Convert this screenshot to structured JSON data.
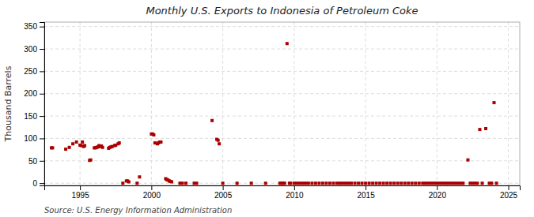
{
  "chart_data": {
    "type": "scatter",
    "title": "Monthly U.S. Exports to Indonesia of Petroleum Coke",
    "ylabel": "Thousand Barrels",
    "annotation": "Source: U.S. Energy Information Administration",
    "color": "#aa0000",
    "marker": "square",
    "grid": true,
    "xlim": [
      1992.5,
      2025.8
    ],
    "xticks": [
      1995,
      2000,
      2005,
      2010,
      2015,
      2020,
      2025
    ],
    "ylim": [
      -5,
      360
    ],
    "yticks": [
      0,
      50,
      100,
      150,
      200,
      250,
      300,
      350
    ],
    "x": [
      1993.0,
      1993.08,
      1994.0,
      1994.25,
      1994.5,
      1994.75,
      1995.0,
      1995.08,
      1995.17,
      1995.25,
      1995.33,
      1995.67,
      1995.75,
      1996.0,
      1996.08,
      1996.17,
      1996.25,
      1996.33,
      1996.42,
      1996.5,
      1996.58,
      1997.0,
      1997.08,
      1997.17,
      1997.25,
      1997.42,
      1997.5,
      1997.67,
      1997.75,
      1998.0,
      1998.25,
      1998.33,
      1998.42,
      1999.0,
      1999.17,
      2000.0,
      2000.08,
      2000.17,
      2000.25,
      2000.42,
      2000.5,
      2000.58,
      2000.67,
      2001.0,
      2001.08,
      2001.17,
      2001.25,
      2001.33,
      2001.42,
      2002.0,
      2002.17,
      2002.42,
      2003.0,
      2003.17,
      2004.25,
      2004.58,
      2004.67,
      2004.75,
      2005.0,
      2006.0,
      2007.0,
      2008.0,
      2009.0,
      2009.08,
      2009.17,
      2009.25,
      2009.33,
      2009.5,
      2009.67,
      2009.75,
      2010.0,
      2010.17,
      2010.33,
      2010.5,
      2010.67,
      2010.83,
      2011.0,
      2011.25,
      2011.5,
      2011.75,
      2012.0,
      2012.25,
      2012.5,
      2012.75,
      2013.0,
      2013.17,
      2013.33,
      2013.5,
      2013.67,
      2013.83,
      2014.0,
      2014.25,
      2014.5,
      2014.75,
      2015.0,
      2015.25,
      2015.5,
      2015.75,
      2016.0,
      2016.25,
      2016.5,
      2016.75,
      2017.0,
      2017.25,
      2017.5,
      2017.75,
      2018.0,
      2018.25,
      2018.5,
      2018.75,
      2019.0,
      2019.17,
      2019.33,
      2019.5,
      2019.67,
      2019.83,
      2020.0,
      2020.17,
      2020.33,
      2020.5,
      2020.67,
      2020.83,
      2021.0,
      2021.17,
      2021.33,
      2021.5,
      2021.67,
      2021.83,
      2022.17,
      2022.33,
      2022.5,
      2022.67,
      2022.83,
      2023.0,
      2023.17,
      2023.42,
      2023.67,
      2023.83,
      2024.0,
      2024.17
    ],
    "values": [
      79,
      79,
      76,
      80,
      88,
      92,
      85,
      84,
      92,
      82,
      84,
      51,
      52,
      79,
      79,
      80,
      81,
      84,
      82,
      83,
      80,
      78,
      80,
      81,
      82,
      84,
      85,
      88,
      90,
      0,
      5,
      5,
      3,
      0,
      14,
      110,
      110,
      108,
      90,
      88,
      90,
      92,
      92,
      10,
      8,
      7,
      5,
      4,
      3,
      0,
      0,
      0,
      0,
      0,
      140,
      98,
      96,
      88,
      0,
      0,
      0,
      0,
      0,
      0,
      0,
      0,
      0,
      312,
      0,
      0,
      0,
      0,
      0,
      0,
      0,
      0,
      0,
      0,
      0,
      0,
      0,
      0,
      0,
      0,
      0,
      0,
      0,
      0,
      0,
      0,
      0,
      0,
      0,
      0,
      0,
      0,
      0,
      0,
      0,
      0,
      0,
      0,
      0,
      0,
      0,
      0,
      0,
      0,
      0,
      0,
      0,
      0,
      0,
      0,
      0,
      0,
      0,
      0,
      0,
      0,
      0,
      0,
      0,
      0,
      0,
      0,
      0,
      0,
      52,
      0,
      0,
      0,
      0,
      120,
      0,
      122,
      0,
      0,
      180,
      0
    ]
  }
}
